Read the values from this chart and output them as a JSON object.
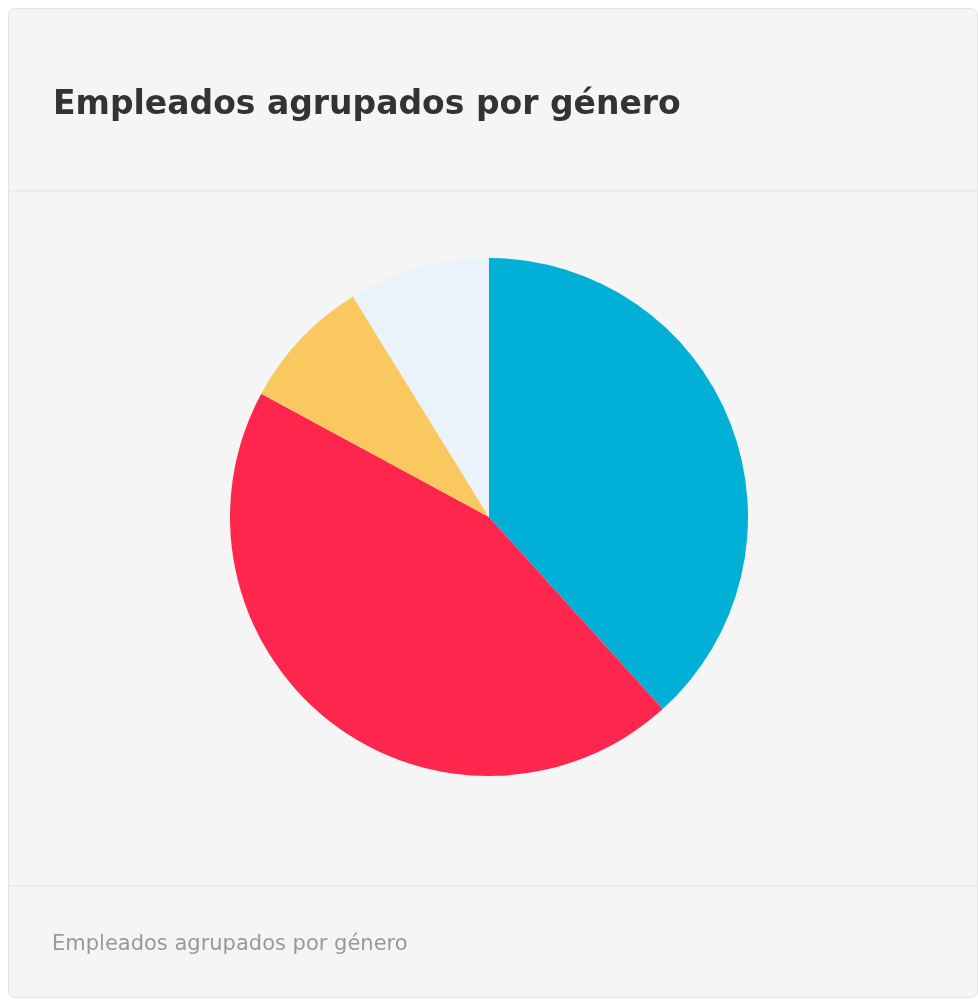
{
  "chart_data": {
    "type": "pie",
    "title": "Empleados agrupados por género",
    "categories": [
      null,
      null,
      null,
      null
    ],
    "values": [
      38.3,
      44.6,
      8.3,
      8.8
    ],
    "colors": [
      "#00b0d6",
      "#ff264d",
      "#f9c95f",
      "#eaf3fb"
    ],
    "annotations": [
      "Empleados agrupados por género"
    ]
  }
}
